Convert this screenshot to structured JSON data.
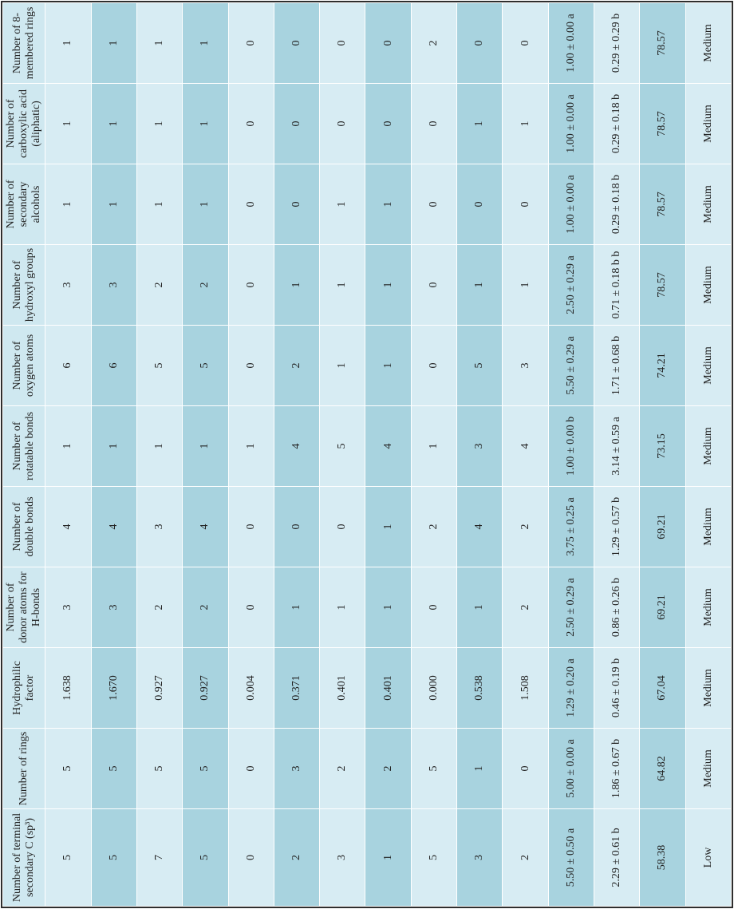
{
  "headers": [
    "Number of terminal secondary C (sp³)",
    "Number of rings",
    "Hydrophilic factor",
    "Number of donor atoms for H-bonds",
    "Number of double bonds",
    "Number of rotatable bonds",
    "Number of oxygen atoms",
    "Number of hydroxyl groups",
    "Number of secondary alcohols",
    "Number of carboxylic acid (aliphatic)",
    "Number of 8-membered rings"
  ],
  "rows": [
    [
      "5",
      "5",
      "1.638",
      "3",
      "4",
      "1",
      "6",
      "3",
      "1",
      "1",
      "1"
    ],
    [
      "5",
      "5",
      "1.670",
      "3",
      "4",
      "1",
      "6",
      "3",
      "1",
      "1",
      "1"
    ],
    [
      "7",
      "5",
      "0.927",
      "2",
      "3",
      "1",
      "5",
      "2",
      "1",
      "1",
      "1"
    ],
    [
      "5",
      "5",
      "0.927",
      "2",
      "4",
      "1",
      "5",
      "2",
      "1",
      "1",
      "1"
    ],
    [
      "0",
      "0",
      "0.004",
      "0",
      "0",
      "1",
      "0",
      "0",
      "0",
      "0",
      "0"
    ],
    [
      "2",
      "3",
      "0.371",
      "1",
      "0",
      "4",
      "2",
      "1",
      "0",
      "0",
      "0"
    ],
    [
      "3",
      "2",
      "0.401",
      "1",
      "0",
      "5",
      "1",
      "1",
      "1",
      "0",
      "0"
    ],
    [
      "1",
      "2",
      "0.401",
      "1",
      "1",
      "4",
      "1",
      "1",
      "1",
      "0",
      "0"
    ],
    [
      "5",
      "5",
      "0.000",
      "0",
      "2",
      "1",
      "0",
      "0",
      "0",
      "0",
      "2"
    ],
    [
      "3",
      "1",
      "0.538",
      "1",
      "4",
      "3",
      "5",
      "1",
      "0",
      "1",
      "0"
    ],
    [
      "2",
      "0",
      "1.508",
      "2",
      "2",
      "4",
      "3",
      "1",
      "0",
      "1",
      "0"
    ],
    [
      "5.50 ± 0.50 a",
      "5.00 ± 0.00 a",
      "1.29 ± 0.20 a",
      "2.50 ± 0.29 a",
      "3.75 ± 0.25 a",
      "1.00 ± 0.00 b",
      "5.50 ± 0.29 a",
      "2.50 ± 0.29 a",
      "1.00 ± 0.00 a",
      "1.00 ± 0.00 a",
      "1.00 ± 0.00 a"
    ],
    [
      "2.29 ± 0.61 b",
      "1.86 ± 0.67 b",
      "0.46 ± 0.19 b",
      "0.86 ± 0.26 b",
      "1.29 ± 0.57 b",
      "3.14 ± 0.59 a",
      "1.71 ± 0.68 b",
      "0.71 ± 0.18 b b",
      "0.29 ± 0.18 b",
      "0.29 ± 0.18 b",
      "0.29 ± 0.29 b"
    ],
    [
      "58.38",
      "64.82",
      "67.04",
      "69.21",
      "69.21",
      "73.15",
      "74.21",
      "78.57",
      "78.57",
      "78.57",
      "78.57"
    ],
    [
      "Low",
      "Medium",
      "Medium",
      "Medium",
      "Medium",
      "Medium",
      "Medium",
      "Medium",
      "Medium",
      "Medium",
      "Medium"
    ]
  ],
  "colors": {
    "header_bg": "#cfe8f0",
    "row_light": "#d7ecf3",
    "row_dark": "#a8d3df"
  }
}
